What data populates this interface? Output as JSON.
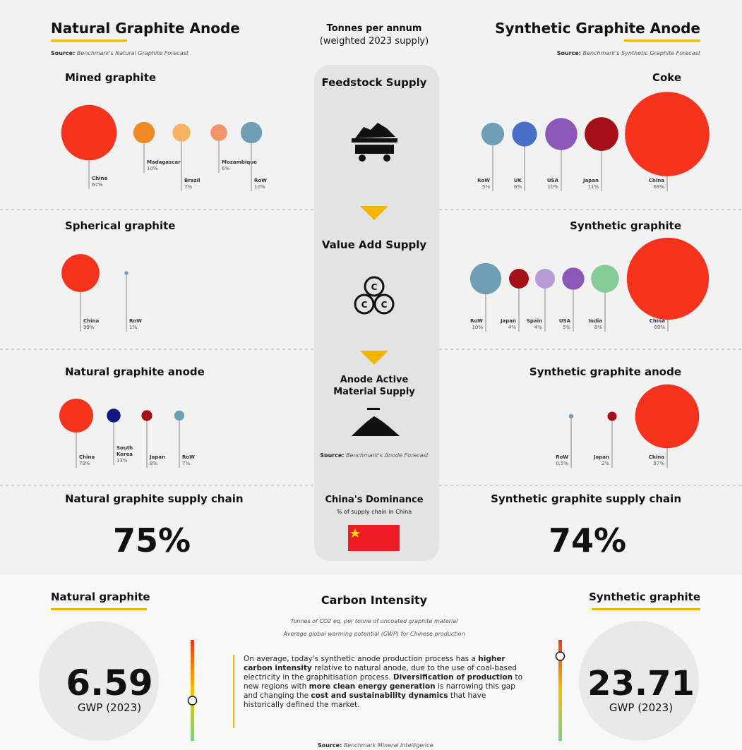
{
  "natural": {
    "title": "Natural Graphite Anode",
    "source": {
      "label": "Source:",
      "text": "Benchmark's Natural Graphite Forecast"
    },
    "panels": [
      {
        "title": "Mined graphite",
        "items": [
          {
            "name": "China",
            "value": 67,
            "value_label": "67%",
            "color": "#f5321b"
          },
          {
            "name": "Madagascar",
            "value": 10,
            "value_label": "10%",
            "color": "#f08a24"
          },
          {
            "name": "Brazil",
            "value": 7,
            "value_label": "7%",
            "color": "#f5b462"
          },
          {
            "name": "Mozambique",
            "value": 6,
            "value_label": "6%",
            "color": "#f29468"
          },
          {
            "name": "RoW",
            "value": 10,
            "value_label": "10%",
            "color": "#6f9fb5"
          }
        ]
      },
      {
        "title": "Spherical graphite",
        "items": [
          {
            "name": "China",
            "value": 99,
            "value_label": "99%",
            "color": "#f5321b"
          },
          {
            "name": "RoW",
            "value": 1,
            "value_label": "1%",
            "color": "#6f9fb5"
          }
        ]
      },
      {
        "title": "Natural graphite anode",
        "items": [
          {
            "name": "China",
            "value": 79,
            "value_label": "79%",
            "color": "#f5321b"
          },
          {
            "name": "South Korea",
            "value": 13,
            "value_label": "13%",
            "color": "#15167e"
          },
          {
            "name": "Japan",
            "value": 8,
            "value_label": "8%",
            "color": "#a50f17"
          },
          {
            "name": "RoW",
            "value": 7,
            "value_label": "7%",
            "color": "#6f9fb5"
          }
        ]
      }
    ],
    "supply_chain": {
      "title": "Natural graphite supply chain",
      "value": 75,
      "value_label": "75%"
    }
  },
  "synthetic": {
    "title": "Synthetic Graphite Anode",
    "source": {
      "label": "Source:",
      "text": "Benchmark's Synthetic Graphite Forecast"
    },
    "panels": [
      {
        "title": "Coke",
        "items": [
          {
            "name": "RoW",
            "value": 5,
            "value_label": "5%",
            "color": "#6f9fb5"
          },
          {
            "name": "UK",
            "value": 6,
            "value_label": "6%",
            "color": "#4a6fc9"
          },
          {
            "name": "USA",
            "value": 10,
            "value_label": "10%",
            "color": "#8b57b8"
          },
          {
            "name": "Japan",
            "value": 11,
            "value_label": "11%",
            "color": "#a50f17"
          },
          {
            "name": "China",
            "value": 69,
            "value_label": "69%",
            "color": "#f5321b"
          }
        ]
      },
      {
        "title": "Synthetic graphite",
        "items": [
          {
            "name": "RoW",
            "value": 10,
            "value_label": "10%",
            "color": "#6f9fb5"
          },
          {
            "name": "Japan",
            "value": 4,
            "value_label": "4%",
            "color": "#a50f17"
          },
          {
            "name": "Spain",
            "value": 4,
            "value_label": "4%",
            "color": "#b79ad8"
          },
          {
            "name": "USA",
            "value": 5,
            "value_label": "5%",
            "color": "#8b57b8"
          },
          {
            "name": "India",
            "value": 8,
            "value_label": "8%",
            "color": "#86cc98"
          },
          {
            "name": "China",
            "value": 69,
            "value_label": "69%",
            "color": "#f5321b"
          }
        ]
      },
      {
        "title": "Synthetic graphite anode",
        "items": [
          {
            "name": "RoW",
            "value": 0.5,
            "value_label": "0.5%",
            "color": "#6f9fb5"
          },
          {
            "name": "Japan",
            "value": 2,
            "value_label": "2%",
            "color": "#a50f17"
          },
          {
            "name": "China",
            "value": 97,
            "value_label": "97%",
            "color": "#f5321b"
          }
        ]
      }
    ],
    "supply_chain": {
      "title": "Synthetic graphite supply chain",
      "value": 74,
      "value_label": "74%"
    }
  },
  "center": {
    "title": "Tonnes per annum",
    "subtitle": "(weighted 2023 supply)",
    "stages": [
      "Feedstock Supply",
      "Value Add Supply",
      "Anode Active Material Supply"
    ],
    "source": {
      "label": "Source:",
      "text": "Benchmark's Anode Forecast"
    },
    "dominance": {
      "title": "China's Dominance",
      "subtitle": "% of supply chain in China"
    }
  },
  "carbon": {
    "title": "Carbon Intensity",
    "subtitle": "Tonnes of CO2 eq. per tonne of uncoated graphite material",
    "subtitle2": "Average global warming potential (GWP) for Chinese production",
    "natural": {
      "label": "Natural graphite",
      "value": 6.59,
      "unit": "GWP (2023)"
    },
    "synthetic": {
      "label": "Synthetic graphite",
      "value": 23.71,
      "unit": "GWP (2023)"
    },
    "paragraph": [
      {
        "text": "On average, today's synthetic anode production process has a ",
        "bold": false
      },
      {
        "text": "higher carbon intensity",
        "bold": true
      },
      {
        "text": " relative to natural anode, due to the use of coal-based electricity in the graphitisation process. ",
        "bold": false
      },
      {
        "text": "Diversification of production",
        "bold": true
      },
      {
        "text": " to new regions with ",
        "bold": false
      },
      {
        "text": "more clean energy generation",
        "bold": true
      },
      {
        "text": " is narrowing this gap and changing the ",
        "bold": false
      },
      {
        "text": "cost and sustainability dynamics",
        "bold": true
      },
      {
        "text": " that have historically defined the market.",
        "bold": false
      }
    ],
    "source": {
      "label": "Source:",
      "text": "Benchmark Mineral Intelligence"
    }
  }
}
